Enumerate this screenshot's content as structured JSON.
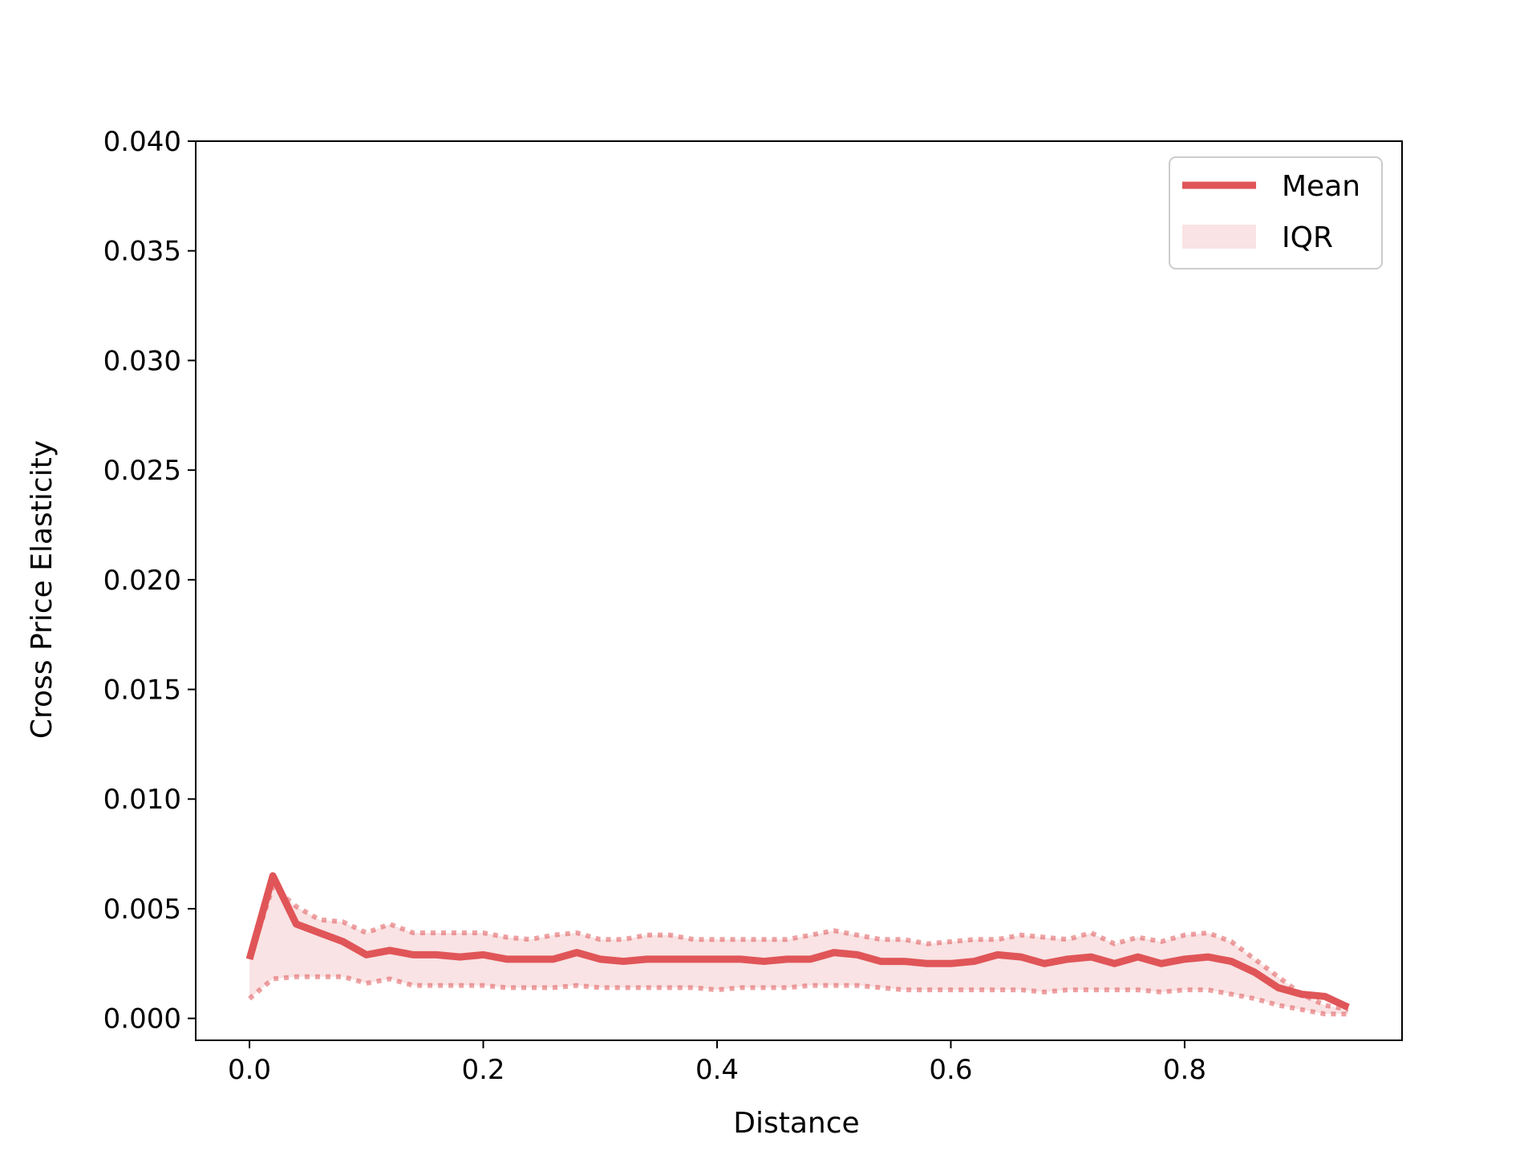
{
  "chart_data": {
    "type": "line",
    "title": "",
    "xlabel": "Distance",
    "ylabel": "Cross Price Elasticity",
    "xlim": [
      -0.046,
      0.986
    ],
    "ylim": [
      -0.001,
      0.04
    ],
    "xticks": [
      0.0,
      0.2,
      0.4,
      0.6,
      0.8
    ],
    "xtick_labels": [
      "0.0",
      "0.2",
      "0.4",
      "0.6",
      "0.8"
    ],
    "yticks": [
      0.0,
      0.005,
      0.01,
      0.015,
      0.02,
      0.025,
      0.03,
      0.035,
      0.04
    ],
    "ytick_labels": [
      "0.000",
      "0.005",
      "0.010",
      "0.015",
      "0.020",
      "0.025",
      "0.030",
      "0.035",
      "0.040"
    ],
    "grid": false,
    "legend_position": "top-right",
    "colors": {
      "line": "#e05558",
      "band": "#f9e3e4"
    },
    "x": [
      0.0,
      0.02,
      0.04,
      0.06,
      0.08,
      0.1,
      0.12,
      0.14,
      0.16,
      0.18,
      0.2,
      0.22,
      0.24,
      0.26,
      0.28,
      0.3,
      0.32,
      0.34,
      0.36,
      0.38,
      0.4,
      0.42,
      0.44,
      0.46,
      0.48,
      0.5,
      0.52,
      0.54,
      0.56,
      0.58,
      0.6,
      0.62,
      0.64,
      0.66,
      0.68,
      0.7,
      0.72,
      0.74,
      0.76,
      0.78,
      0.8,
      0.82,
      0.84,
      0.86,
      0.88,
      0.9,
      0.92,
      0.94
    ],
    "series": [
      {
        "name": "Mean",
        "values": [
          0.0027,
          0.0065,
          0.0043,
          0.0039,
          0.0035,
          0.0029,
          0.0031,
          0.0029,
          0.0029,
          0.0028,
          0.0029,
          0.0027,
          0.0027,
          0.0027,
          0.003,
          0.0027,
          0.0026,
          0.0027,
          0.0027,
          0.0027,
          0.0027,
          0.0027,
          0.0026,
          0.0027,
          0.0027,
          0.003,
          0.0029,
          0.0026,
          0.0026,
          0.0025,
          0.0025,
          0.0026,
          0.0029,
          0.0028,
          0.0025,
          0.0027,
          0.0028,
          0.0025,
          0.0028,
          0.0025,
          0.0027,
          0.0028,
          0.0026,
          0.0021,
          0.0014,
          0.0011,
          0.001,
          0.0005
        ]
      },
      {
        "name": "IQR",
        "lower": [
          0.0009,
          0.0018,
          0.0019,
          0.0019,
          0.0019,
          0.0016,
          0.0018,
          0.0015,
          0.0015,
          0.0015,
          0.0015,
          0.0014,
          0.0014,
          0.0014,
          0.0015,
          0.0014,
          0.0014,
          0.0014,
          0.0014,
          0.0014,
          0.0013,
          0.0014,
          0.0014,
          0.0014,
          0.0015,
          0.0015,
          0.0015,
          0.0014,
          0.0013,
          0.0013,
          0.0013,
          0.0013,
          0.0013,
          0.0013,
          0.0012,
          0.0013,
          0.0013,
          0.0013,
          0.0013,
          0.0012,
          0.0013,
          0.0013,
          0.0011,
          0.0009,
          0.0006,
          0.0004,
          0.0002,
          0.0002
        ],
        "upper": [
          0.0027,
          0.006,
          0.0051,
          0.0045,
          0.0044,
          0.0039,
          0.0043,
          0.0039,
          0.0039,
          0.0039,
          0.0039,
          0.0037,
          0.0036,
          0.0038,
          0.0039,
          0.0036,
          0.0036,
          0.0038,
          0.0038,
          0.0036,
          0.0036,
          0.0036,
          0.0036,
          0.0036,
          0.0038,
          0.004,
          0.0038,
          0.0036,
          0.0036,
          0.0034,
          0.0035,
          0.0036,
          0.0036,
          0.0038,
          0.0037,
          0.0036,
          0.0039,
          0.0034,
          0.0037,
          0.0035,
          0.0038,
          0.0039,
          0.0035,
          0.0027,
          0.0019,
          0.0011,
          0.0006,
          0.0004
        ]
      }
    ]
  }
}
